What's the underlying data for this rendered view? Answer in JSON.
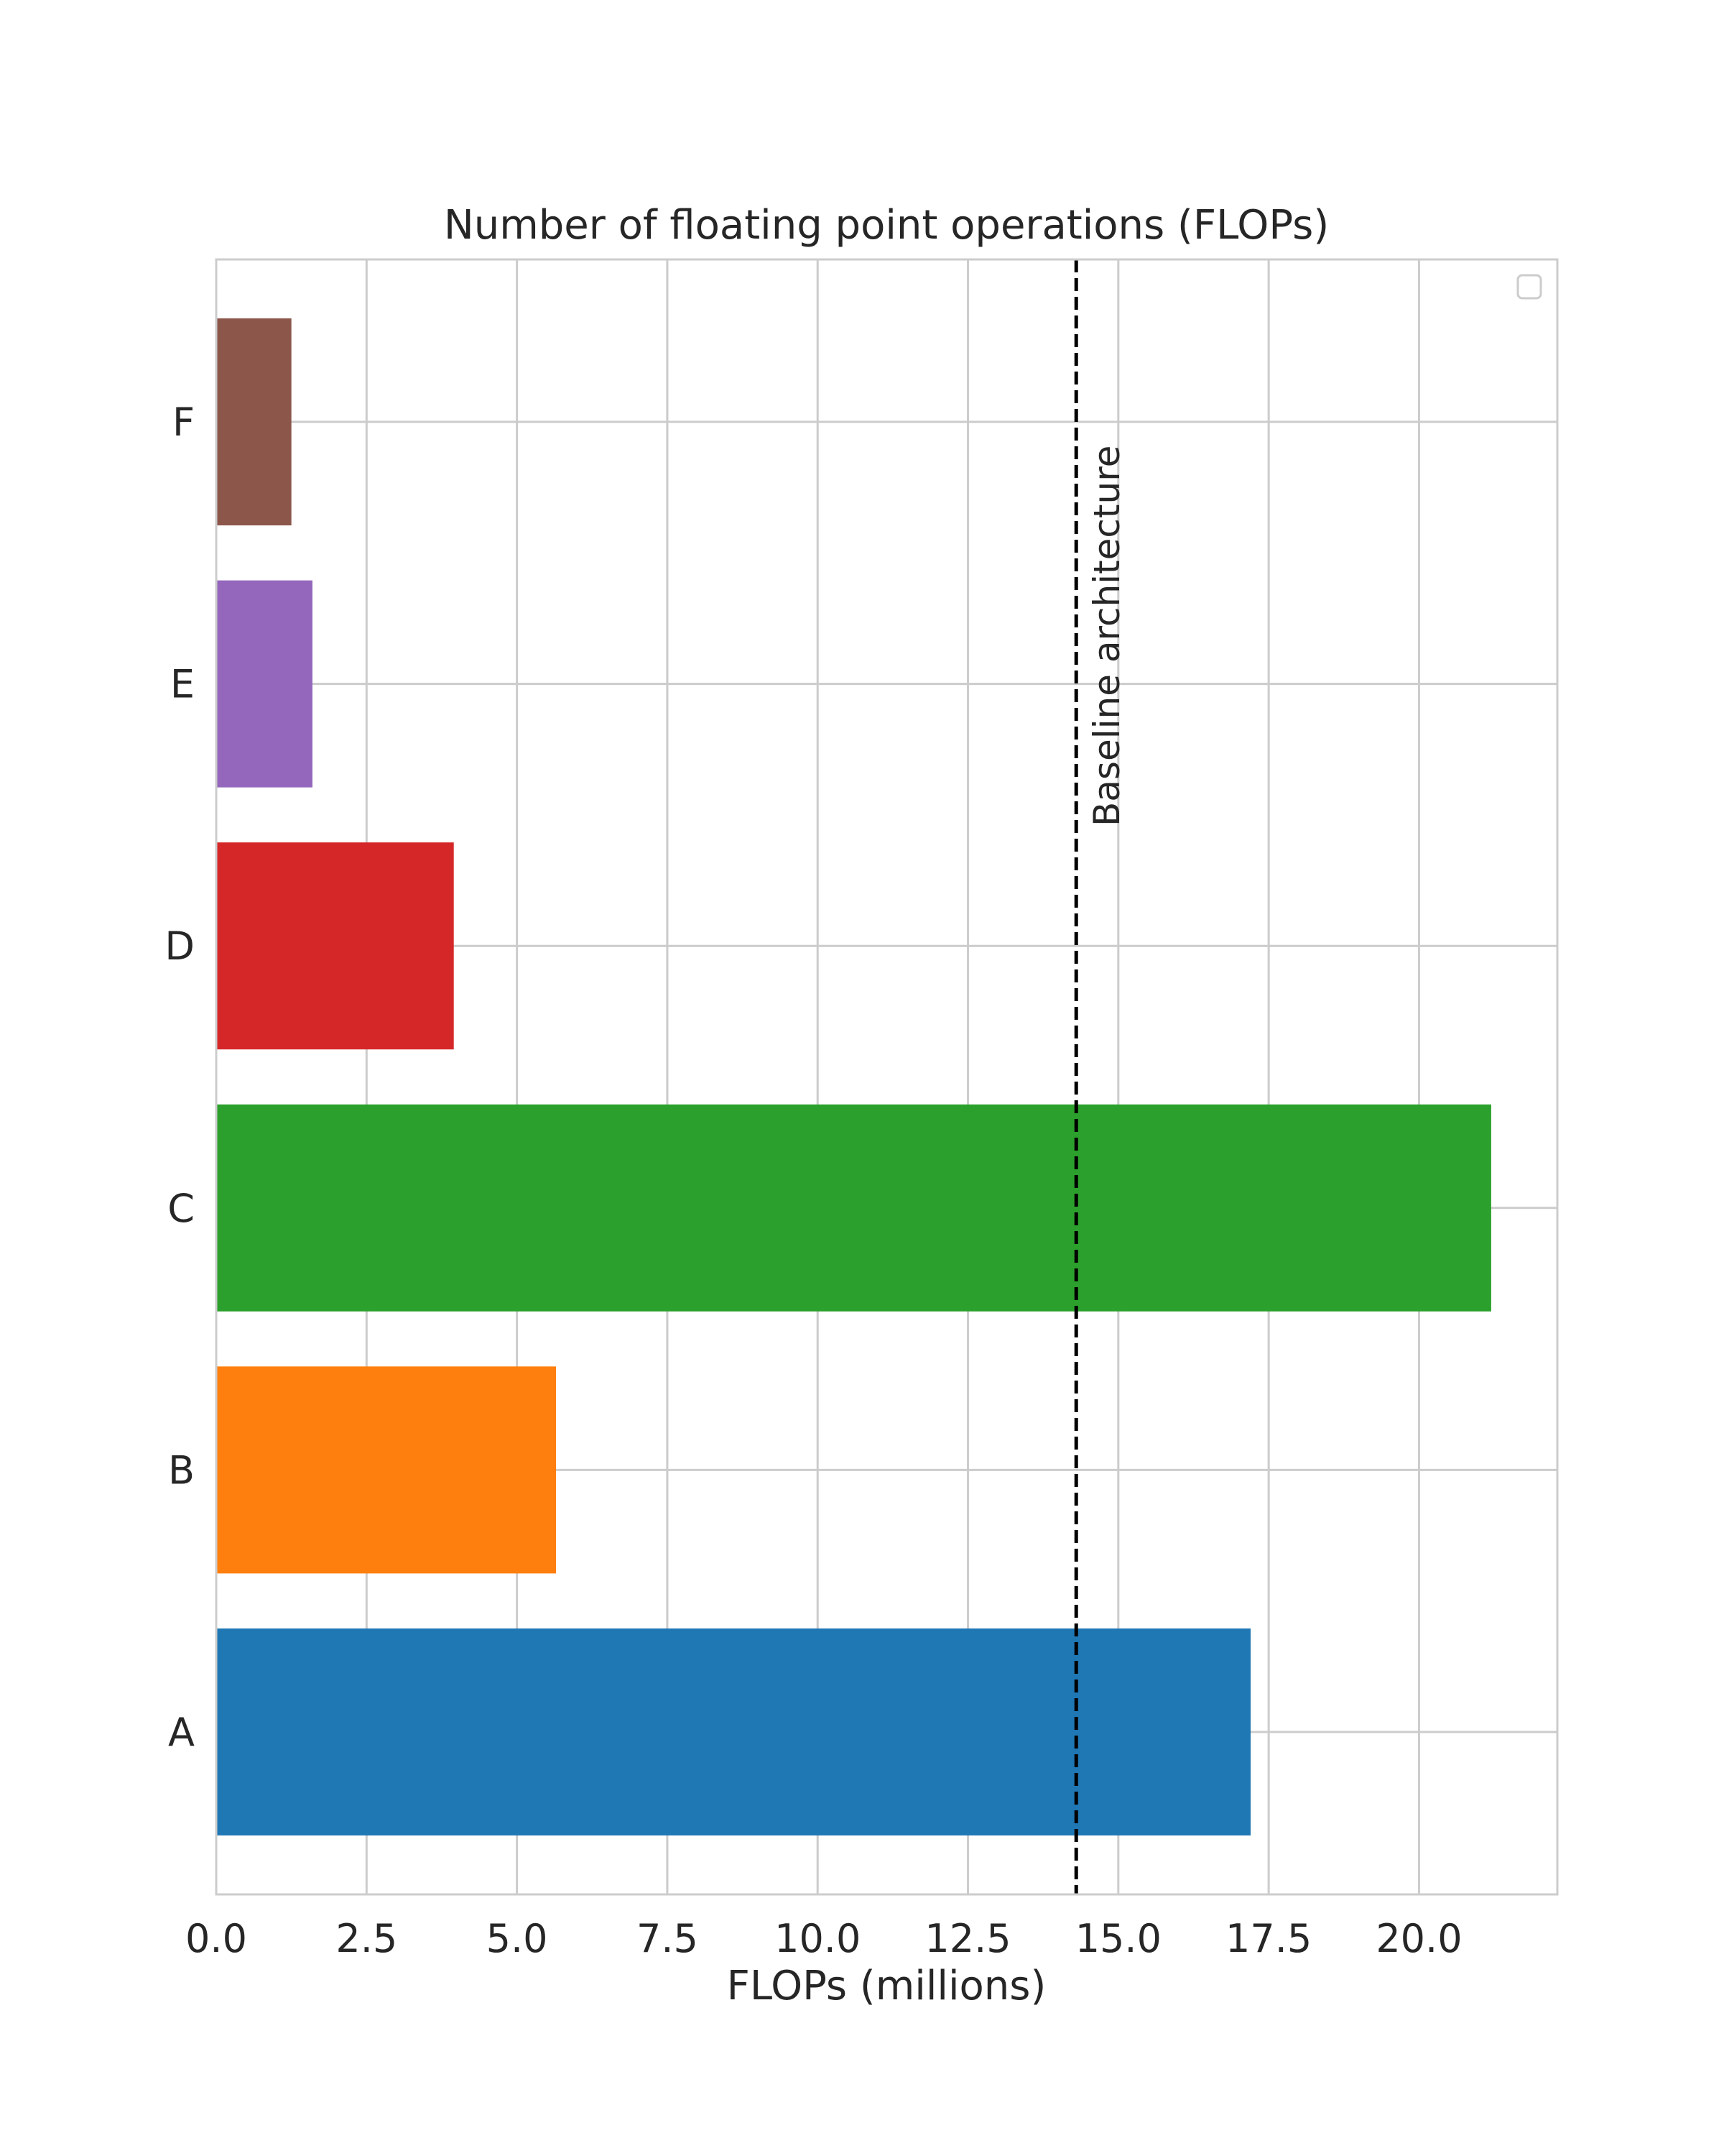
{
  "chart_data": {
    "type": "bar",
    "orientation": "horizontal",
    "title": "Number of floating point operations (FLOPs)",
    "xlabel": "FLOPs (millions)",
    "ylabel": "",
    "xlim": [
      0,
      22.3
    ],
    "xticks": [
      0.0,
      2.5,
      5.0,
      7.5,
      10.0,
      12.5,
      15.0,
      17.5,
      20.0
    ],
    "xtick_labels": [
      "0.0",
      "2.5",
      "5.0",
      "7.5",
      "10.0",
      "12.5",
      "15.0",
      "17.5",
      "20.0"
    ],
    "categories": [
      "A",
      "B",
      "C",
      "D",
      "E",
      "F"
    ],
    "values": [
      17.2,
      5.65,
      21.2,
      3.95,
      1.6,
      1.25
    ],
    "colors": [
      "#1f77b4",
      "#ff7f0e",
      "#2ca02c",
      "#d62728",
      "#9467bd",
      "#8c564b"
    ],
    "grid": true,
    "legend": {
      "placement": "top-right",
      "entries": []
    },
    "reference_line": {
      "x": 14.3,
      "style": "dashed",
      "color": "#000000",
      "label": "Baseline architecture"
    }
  }
}
